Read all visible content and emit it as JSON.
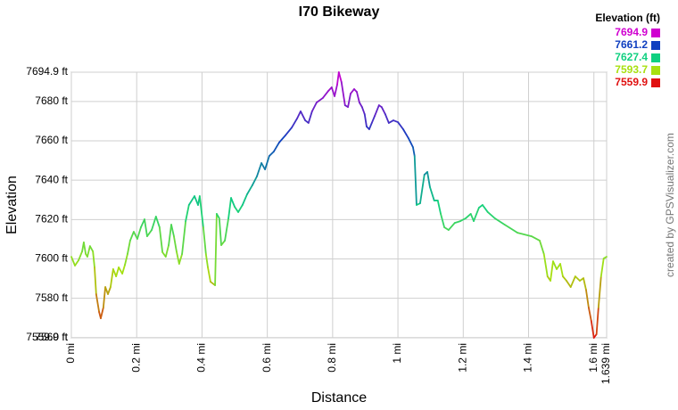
{
  "chart_data": {
    "type": "line",
    "title": "I70 Bikeway",
    "x_label": "Distance",
    "y_label": "Elevation",
    "credit": "created by GPSVisualizer.com",
    "x": [
      0,
      0.011,
      0.022,
      0.033,
      0.038,
      0.044,
      0.049,
      0.057,
      0.066,
      0.071,
      0.076,
      0.085,
      0.09,
      0.098,
      0.104,
      0.112,
      0.12,
      0.128,
      0.137,
      0.145,
      0.156,
      0.164,
      0.172,
      0.18,
      0.191,
      0.202,
      0.213,
      0.224,
      0.232,
      0.246,
      0.259,
      0.27,
      0.279,
      0.289,
      0.298,
      0.306,
      0.314,
      0.322,
      0.33,
      0.339,
      0.35,
      0.36,
      0.377,
      0.388,
      0.393,
      0.404,
      0.412,
      0.418,
      0.426,
      0.44,
      0.445,
      0.453,
      0.459,
      0.47,
      0.481,
      0.489,
      0.5,
      0.511,
      0.524,
      0.538,
      0.554,
      0.568,
      0.582,
      0.593,
      0.606,
      0.62,
      0.636,
      0.655,
      0.675,
      0.691,
      0.702,
      0.716,
      0.726,
      0.737,
      0.751,
      0.77,
      0.787,
      0.797,
      0.806,
      0.814,
      0.819,
      0.827,
      0.838,
      0.847,
      0.855,
      0.866,
      0.874,
      0.882,
      0.89,
      0.898,
      0.904,
      0.912,
      0.92,
      0.929,
      0.942,
      0.95,
      0.961,
      0.972,
      0.986,
      1.0,
      1.016,
      1.032,
      1.046,
      1.051,
      1.057,
      1.068,
      1.081,
      1.09,
      1.098,
      1.111,
      1.122,
      1.131,
      1.142,
      1.155,
      1.174,
      1.191,
      1.207,
      1.223,
      1.232,
      1.248,
      1.259,
      1.275,
      1.297,
      1.327,
      1.366,
      1.409,
      1.434,
      1.447,
      1.458,
      1.467,
      1.475,
      1.486,
      1.497,
      1.505,
      1.516,
      1.529,
      1.543,
      1.557,
      1.568,
      1.576,
      1.584,
      1.592,
      1.6,
      1.608,
      1.614,
      1.622,
      1.63,
      1.639
    ],
    "values": [
      7601.1,
      7596.6,
      7599.3,
      7603.8,
      7608.4,
      7602.5,
      7601.1,
      7606.5,
      7603.8,
      7595.7,
      7582.1,
      7573.0,
      7569.8,
      7575.3,
      7585.7,
      7582.1,
      7585.7,
      7594.8,
      7591.1,
      7595.7,
      7592.5,
      7597.0,
      7602.5,
      7609.3,
      7613.8,
      7610.2,
      7616.1,
      7620.1,
      7611.5,
      7614.7,
      7621.5,
      7616.1,
      7603.4,
      7601.1,
      7607.0,
      7617.4,
      7611.5,
      7603.8,
      7597.5,
      7602.5,
      7619.2,
      7627.4,
      7631.9,
      7627.4,
      7631.9,
      7616.1,
      7602.5,
      7595.7,
      7588.4,
      7586.6,
      7622.9,
      7620.6,
      7607.0,
      7609.3,
      7620.6,
      7631.0,
      7626.5,
      7623.8,
      7627.4,
      7632.8,
      7637.4,
      7641.9,
      7648.7,
      7645.5,
      7652.3,
      7654.6,
      7659.1,
      7662.7,
      7666.8,
      7671.3,
      7675.0,
      7670.4,
      7669.1,
      7675.0,
      7679.5,
      7681.8,
      7685.4,
      7687.2,
      7682.7,
      7688.6,
      7694.9,
      7689.9,
      7678.1,
      7677.2,
      7684.0,
      7686.3,
      7684.9,
      7679.5,
      7677.2,
      7673.6,
      7667.3,
      7665.9,
      7669.1,
      7672.7,
      7678.1,
      7677.2,
      7673.6,
      7669.1,
      7670.4,
      7669.5,
      7665.9,
      7661.4,
      7656.8,
      7652.3,
      7627.4,
      7628.3,
      7642.8,
      7644.2,
      7636.5,
      7629.7,
      7629.7,
      7622.9,
      7616.1,
      7614.7,
      7618.3,
      7619.2,
      7620.6,
      7622.9,
      7619.2,
      7626.0,
      7627.4,
      7623.8,
      7620.6,
      7617.4,
      7613.3,
      7611.5,
      7609.3,
      7602.5,
      7591.1,
      7588.9,
      7598.8,
      7594.8,
      7597.5,
      7591.1,
      7588.9,
      7585.7,
      7591.1,
      7588.9,
      7590.2,
      7584.3,
      7575.3,
      7568.5,
      7559.9,
      7561.7,
      7575.3,
      7591.1,
      7600.2,
      7601.1
    ],
    "xlim": [
      0,
      1.639
    ],
    "xticks": [
      {
        "value": 0,
        "label": "0 mi"
      },
      {
        "value": 0.2,
        "label": "0.2 mi"
      },
      {
        "value": 0.4,
        "label": "0.4 mi"
      },
      {
        "value": 0.6,
        "label": "0.6 mi"
      },
      {
        "value": 0.8,
        "label": "0.8 mi"
      },
      {
        "value": 1,
        "label": "1 mi"
      },
      {
        "value": 1.2,
        "label": "1.2 mi"
      },
      {
        "value": 1.4,
        "label": "1.4 mi"
      },
      {
        "value": 1.6,
        "label": "1.6 mi"
      },
      {
        "value": 1.639,
        "label": "1.639 mi"
      }
    ],
    "ylim": [
      7559.9,
      7694.9
    ],
    "yticks": [
      {
        "value": 7559.9,
        "label": "7559.9 ft"
      },
      {
        "value": 7560,
        "label": "7560 ft"
      },
      {
        "value": 7580,
        "label": "7580 ft"
      },
      {
        "value": 7600,
        "label": "7600 ft"
      },
      {
        "value": 7620,
        "label": "7620 ft"
      },
      {
        "value": 7640,
        "label": "7640 ft"
      },
      {
        "value": 7660,
        "label": "7660 ft"
      },
      {
        "value": 7680,
        "label": "7680 ft"
      },
      {
        "value": 7694.9,
        "label": "7694.9 ft"
      }
    ],
    "grid": true,
    "legend": {
      "title": "Elevation (ft)",
      "items": [
        {
          "value": 7694.9,
          "color": "#d000d0"
        },
        {
          "value": 7661.2,
          "color": "#1040c0"
        },
        {
          "value": 7627.4,
          "color": "#10d080"
        },
        {
          "value": 7593.7,
          "color": "#a8e010"
        },
        {
          "value": 7559.9,
          "color": "#e01010"
        }
      ]
    }
  }
}
